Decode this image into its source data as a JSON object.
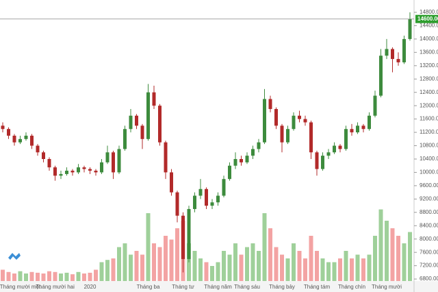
{
  "chart_data": {
    "type": "candlestick",
    "categories": [
      null,
      null,
      null,
      "Tháng mười một",
      null,
      null,
      null,
      null,
      null,
      "Tháng mười hai",
      null,
      null,
      null,
      null,
      null,
      "2020",
      null,
      null,
      null,
      null,
      null,
      null,
      null,
      null,
      null,
      "Tháng ba",
      null,
      null,
      null,
      null,
      null,
      "Tháng tư",
      null,
      null,
      null,
      null,
      null,
      "Tháng năm",
      null,
      null,
      null,
      null,
      "Tháng sáu",
      null,
      null,
      null,
      null,
      null,
      "Tháng bảy",
      null,
      null,
      null,
      null,
      null,
      "Tháng tám",
      null,
      null,
      null,
      null,
      null,
      "Tháng chín",
      null,
      null,
      null,
      null,
      null,
      "Tháng mười",
      null,
      null,
      null,
      null
    ],
    "open": [
      11400,
      11300,
      11100,
      10900,
      11000,
      11100,
      10800,
      10600,
      10400,
      10150,
      9900,
      9950,
      10050,
      10000,
      10150,
      10100,
      10050,
      10000,
      10300,
      10600,
      10000,
      10700,
      11300,
      11700,
      11400,
      11000,
      12400,
      12000,
      10900,
      10000,
      9400,
      8700,
      7400,
      8900,
      9300,
      9500,
      9000,
      9100,
      9300,
      9800,
      10200,
      10400,
      10300,
      10500,
      10700,
      10900,
      12200,
      11900,
      11400,
      10900,
      11300,
      11700,
      11600,
      11500,
      10600,
      10100,
      10500,
      10600,
      10800,
      10700,
      11300,
      11200,
      11400,
      11300,
      11700,
      12300,
      13500,
      13700,
      13400,
      13300,
      14000
    ],
    "high": [
      11500,
      11350,
      11150,
      11100,
      11200,
      11150,
      10850,
      10650,
      10450,
      10200,
      10050,
      10150,
      10100,
      10250,
      10200,
      10150,
      10100,
      10400,
      10800,
      10650,
      10800,
      11400,
      11900,
      11750,
      11450,
      12650,
      12600,
      12050,
      10950,
      10100,
      9450,
      8800,
      9000,
      9400,
      9800,
      9550,
      9200,
      9400,
      9900,
      10300,
      10600,
      10500,
      10600,
      10800,
      11000,
      12500,
      12300,
      11950,
      11450,
      11400,
      11800,
      11850,
      11700,
      11550,
      10650,
      10600,
      10700,
      10900,
      10850,
      11400,
      11450,
      11500,
      11450,
      11800,
      12450,
      13700,
      14000,
      13750,
      13600,
      14100,
      14800
    ],
    "low": [
      11200,
      11000,
      10800,
      10850,
      10950,
      10700,
      10500,
      10300,
      10050,
      9750,
      9800,
      9900,
      9900,
      9950,
      10000,
      9950,
      9900,
      9950,
      10250,
      9800,
      9950,
      10650,
      11200,
      11300,
      10700,
      10950,
      11900,
      10800,
      9800,
      9300,
      8500,
      7000,
      7300,
      8800,
      9200,
      8900,
      8900,
      9000,
      9250,
      9750,
      10100,
      10200,
      10250,
      10400,
      10600,
      10850,
      11800,
      11300,
      10600,
      10850,
      11250,
      11500,
      11400,
      10400,
      9900,
      10050,
      10400,
      10550,
      10600,
      10650,
      11100,
      11150,
      11200,
      11250,
      11650,
      12250,
      13400,
      13000,
      13200,
      13250,
      13950
    ],
    "close": [
      11300,
      11100,
      10900,
      11000,
      11100,
      10800,
      10600,
      10400,
      10150,
      9900,
      9950,
      10050,
      10000,
      10150,
      10100,
      10050,
      10000,
      10300,
      10600,
      10000,
      10700,
      11300,
      11700,
      11400,
      11000,
      12400,
      12000,
      10900,
      10000,
      9400,
      8700,
      7400,
      8900,
      9300,
      9500,
      9000,
      9100,
      9300,
      9800,
      10200,
      10400,
      10300,
      10500,
      10700,
      10900,
      12200,
      11900,
      11400,
      10900,
      11300,
      11700,
      11600,
      11500,
      10600,
      10100,
      10500,
      10600,
      10800,
      10700,
      11300,
      11200,
      11400,
      11300,
      11700,
      12300,
      13500,
      13700,
      13400,
      13300,
      14000,
      14600
    ],
    "volume": [
      1.5,
      1.2,
      1.0,
      1.3,
      1.0,
      1.2,
      1.1,
      1.0,
      1.3,
      1.2,
      1.0,
      1.1,
      0.9,
      1.2,
      1.0,
      1.1,
      1.5,
      2.5,
      2.8,
      3,
      4.5,
      5,
      3.5,
      4,
      3.5,
      9,
      5,
      4.5,
      6,
      5.5,
      7,
      8,
      5,
      4,
      3,
      2.5,
      2,
      2.5,
      4,
      3.5,
      5,
      3.5,
      4.5,
      5,
      4,
      9,
      7,
      4.5,
      3.5,
      3,
      5,
      4,
      3,
      6,
      4,
      3,
      2.5,
      2.5,
      3,
      4,
      3,
      3.5,
      3,
      3.5,
      6,
      9.5,
      8,
      7,
      6,
      5,
      6.5
    ],
    "up_color": "#3d8b3d",
    "down_color": "#b22a2a",
    "volume_up_color": "#9fd09a",
    "volume_down_color": "#f3a3a3",
    "volume_ylim": [
      0,
      10
    ],
    "ylim": [
      6740,
      15170
    ],
    "yticks": [
      {
        "value": 6800,
        "label": "6800.00"
      },
      {
        "value": 7200,
        "label": "7200.00"
      },
      {
        "value": 7600,
        "label": "7600.00"
      },
      {
        "value": 8000,
        "label": "8000.00"
      },
      {
        "value": 8400,
        "label": "8400.00"
      },
      {
        "value": 8800,
        "label": "8800.00"
      },
      {
        "value": 9200,
        "label": "9200.00"
      },
      {
        "value": 9600,
        "label": "9600.00"
      },
      {
        "value": 10000,
        "label": "10000.00"
      },
      {
        "value": 10400,
        "label": "10400.00"
      },
      {
        "value": 10800,
        "label": "10800.00"
      },
      {
        "value": 11200,
        "label": "11200.00"
      },
      {
        "value": 11600,
        "label": "11600.00"
      },
      {
        "value": 12000,
        "label": "12000.00"
      },
      {
        "value": 12400,
        "label": "12400.00"
      },
      {
        "value": 12800,
        "label": "12800.00"
      },
      {
        "value": 13200,
        "label": "13200.00"
      },
      {
        "value": 13600,
        "label": "13600.00"
      },
      {
        "value": 14000,
        "label": "14000.00"
      },
      {
        "value": 14400,
        "label": "14400.00"
      },
      {
        "value": 14800,
        "label": "14800.00"
      }
    ],
    "price_line": {
      "value": 14600,
      "label": "14600.00",
      "color": "#2e9e2e"
    }
  }
}
